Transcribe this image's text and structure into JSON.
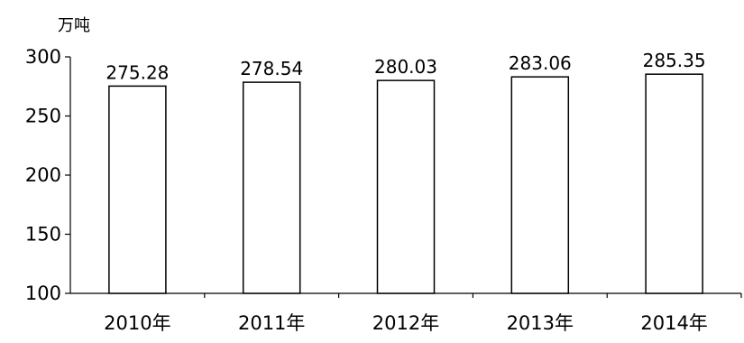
{
  "chart_data": {
    "type": "bar",
    "unit_label": "万吨",
    "categories": [
      "2010年",
      "2011年",
      "2012年",
      "2013年",
      "2014年"
    ],
    "values": [
      275.28,
      278.54,
      280.03,
      283.06,
      285.35
    ],
    "value_labels": [
      "275.28",
      "278.54",
      "280.03",
      "283.06",
      "285.35"
    ],
    "ylim": [
      100,
      300
    ],
    "yticks": [
      100,
      150,
      200,
      250,
      300
    ],
    "grid": false,
    "bar_fill": "#ffffff",
    "bar_stroke": "#000000"
  }
}
